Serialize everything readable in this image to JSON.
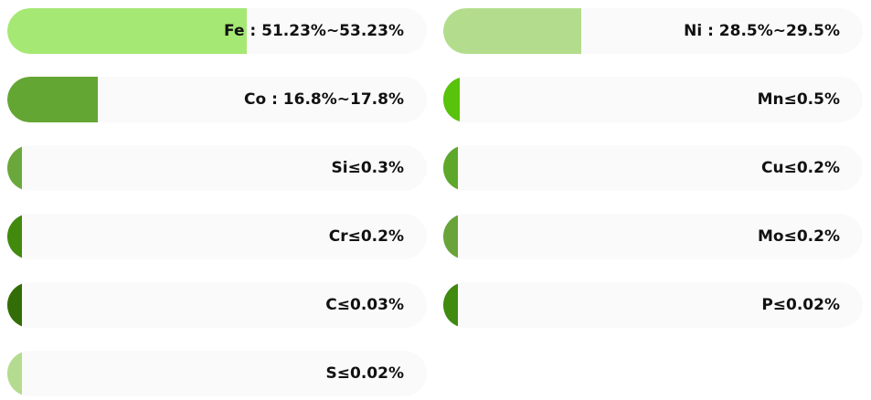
{
  "chart_data": {
    "type": "bar",
    "orientation": "horizontal",
    "bars": [
      {
        "label": "Fe : 51.23%~53.23%",
        "value": 0.57,
        "color": "#a5e873"
      },
      {
        "label": "Ni : 28.5%~29.5%",
        "value": 0.33,
        "color": "#b3dd8d"
      },
      {
        "label": "Co : 16.8%~17.8%",
        "value": 0.215,
        "color": "#64a634"
      },
      {
        "label": "Mn≤0.5%",
        "value": 0.04,
        "color": "#58c20c"
      },
      {
        "label": "Si≤0.3%",
        "value": 0.035,
        "color": "#6aa83b"
      },
      {
        "label": "Cu≤0.2%",
        "value": 0.035,
        "color": "#5da72a"
      },
      {
        "label": "Cr≤0.2%",
        "value": 0.035,
        "color": "#418a0e"
      },
      {
        "label": "Mo≤0.2%",
        "value": 0.035,
        "color": "#69a43a"
      },
      {
        "label": "C≤0.03%",
        "value": 0.035,
        "color": "#336d07"
      },
      {
        "label": "P≤0.02%",
        "value": 0.035,
        "color": "#3f8a0f"
      },
      {
        "label": "S≤0.02%",
        "value": 0.035,
        "color": "#b4db8f"
      }
    ]
  }
}
